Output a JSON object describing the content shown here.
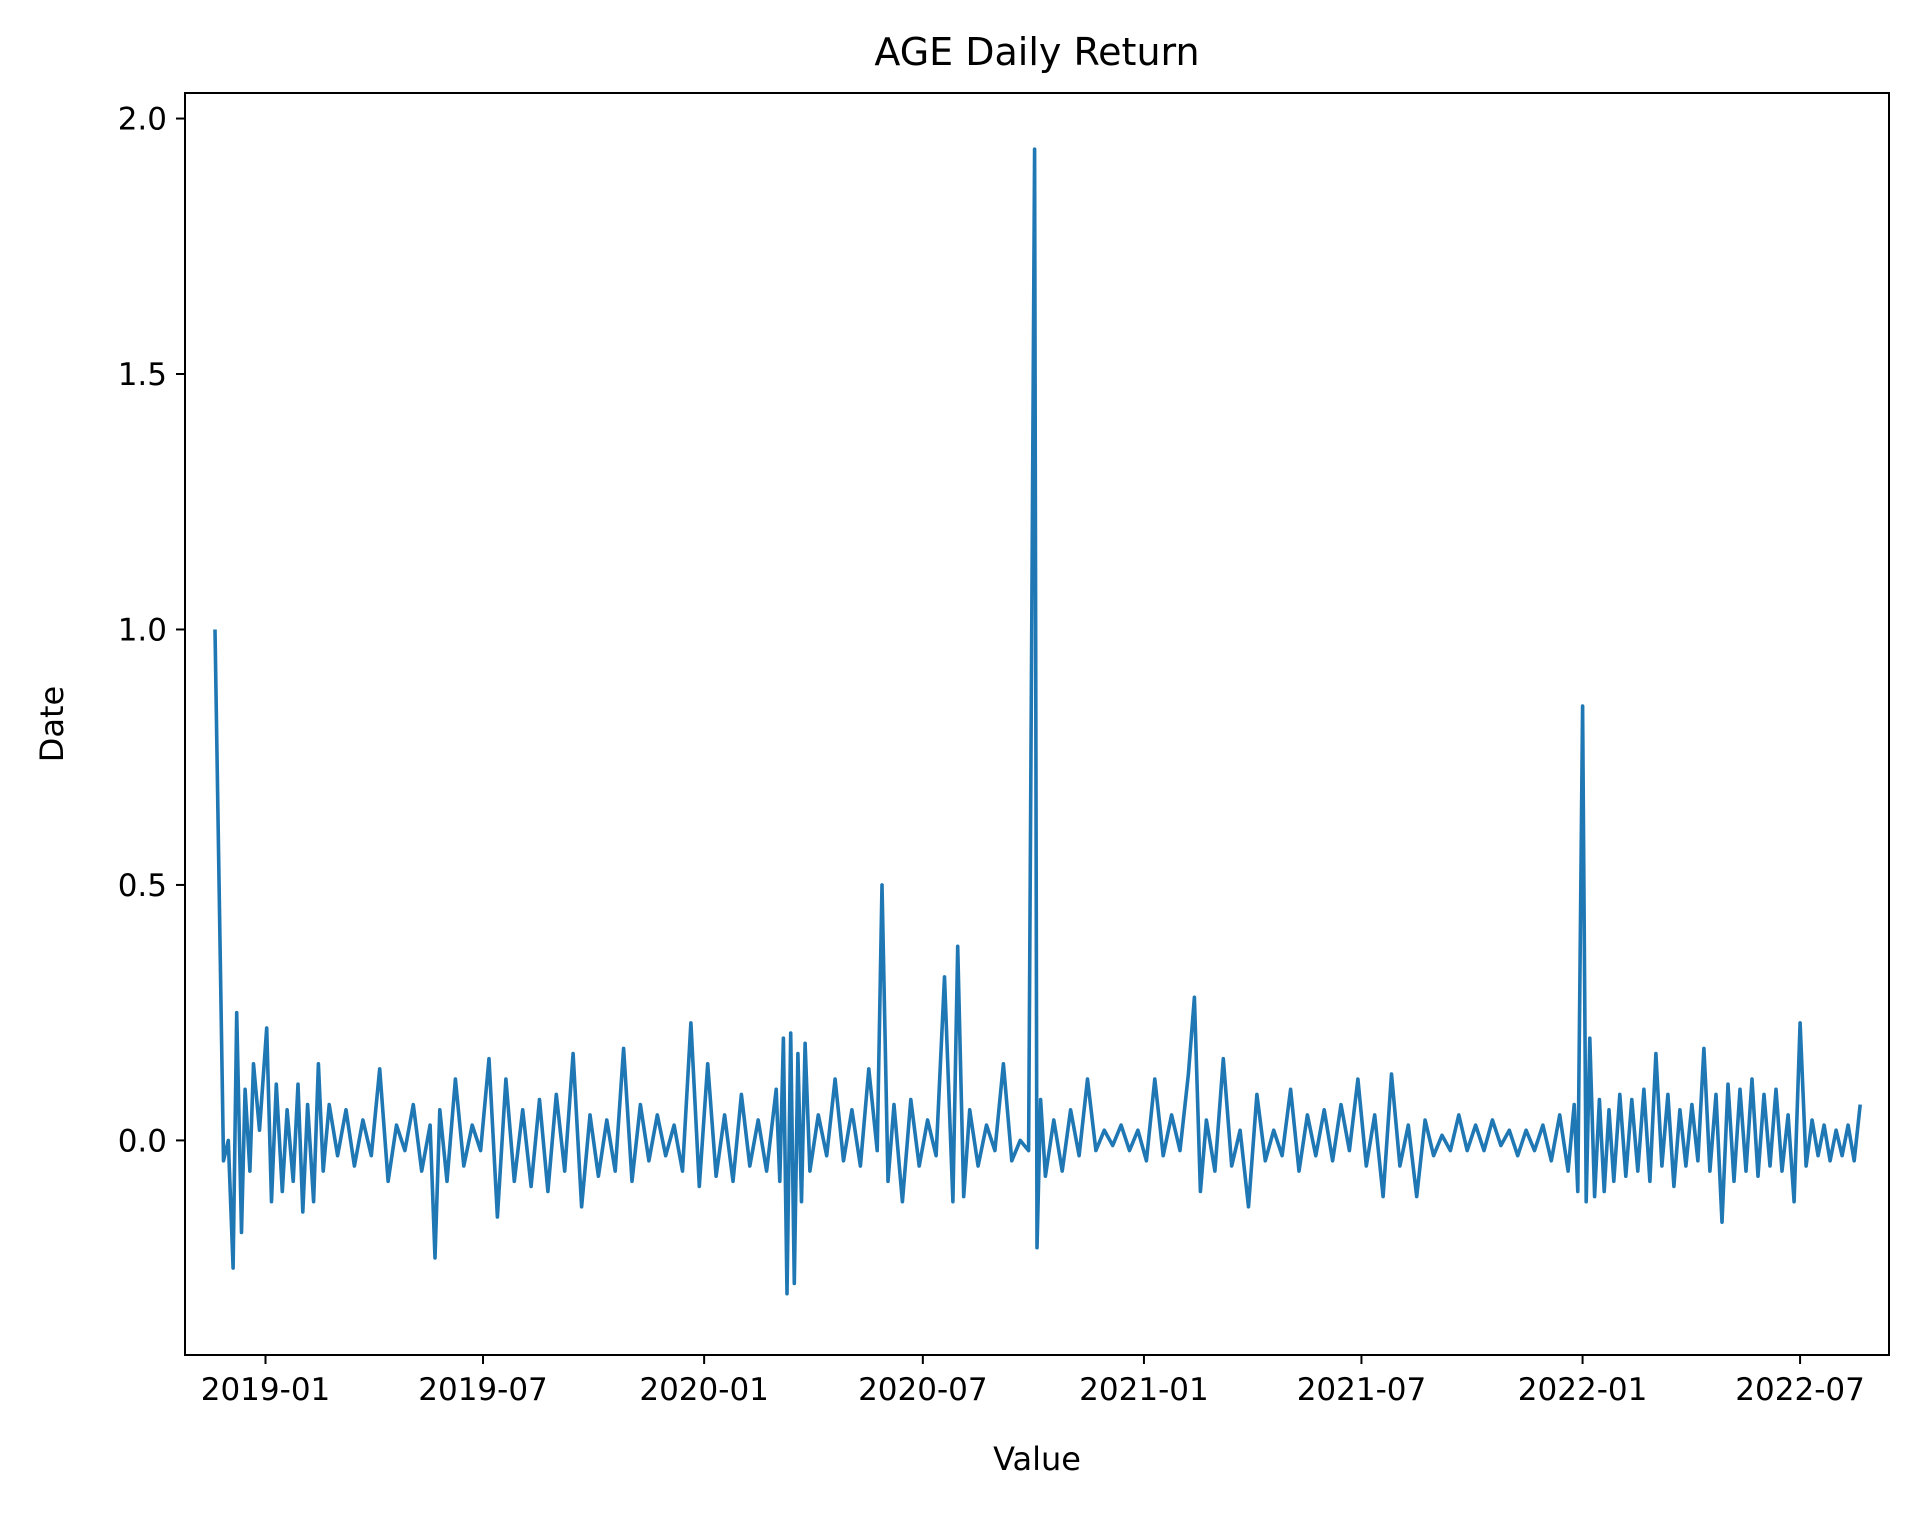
{
  "chart_data": {
    "type": "line",
    "title": "AGE Daily Return",
    "xlabel": "Value",
    "ylabel": "Date",
    "xlim": [
      "2018-10-26",
      "2022-09-13"
    ],
    "ylim": [
      -0.42,
      2.05
    ],
    "x_ticks": [
      "2019-01",
      "2019-07",
      "2020-01",
      "2020-07",
      "2021-01",
      "2021-07",
      "2022-01",
      "2022-07"
    ],
    "y_ticks": [
      "0.0",
      "0.5",
      "1.0",
      "1.5",
      "2.0"
    ],
    "grid": false,
    "color": "#1f77b4",
    "series": [
      {
        "x": [
          "2018-11-20",
          "2018-11-27",
          "2018-12-01",
          "2018-12-05",
          "2018-12-08",
          "2018-12-12",
          "2018-12-15",
          "2018-12-19",
          "2018-12-22",
          "2018-12-27",
          "2019-01-02",
          "2019-01-06",
          "2019-01-10",
          "2019-01-15",
          "2019-01-19",
          "2019-01-24",
          "2019-01-28",
          "2019-02-01",
          "2019-02-05",
          "2019-02-10",
          "2019-02-14",
          "2019-02-18",
          "2019-02-23",
          "2019-03-02",
          "2019-03-09",
          "2019-03-16",
          "2019-03-23",
          "2019-03-30",
          "2019-04-06",
          "2019-04-13",
          "2019-04-20",
          "2019-04-27",
          "2019-05-04",
          "2019-05-11",
          "2019-05-18",
          "2019-05-22",
          "2019-05-26",
          "2019-06-01",
          "2019-06-08",
          "2019-06-15",
          "2019-06-22",
          "2019-06-29",
          "2019-07-06",
          "2019-07-13",
          "2019-07-20",
          "2019-07-27",
          "2019-08-03",
          "2019-08-10",
          "2019-08-17",
          "2019-08-24",
          "2019-08-31",
          "2019-09-07",
          "2019-09-14",
          "2019-09-21",
          "2019-09-28",
          "2019-10-05",
          "2019-10-12",
          "2019-10-19",
          "2019-10-26",
          "2019-11-02",
          "2019-11-09",
          "2019-11-16",
          "2019-11-23",
          "2019-11-30",
          "2019-12-07",
          "2019-12-14",
          "2019-12-21",
          "2019-12-28",
          "2020-01-04",
          "2020-01-11",
          "2020-01-18",
          "2020-01-25",
          "2020-02-01",
          "2020-02-08",
          "2020-02-15",
          "2020-02-22",
          "2020-03-01",
          "2020-03-04",
          "2020-03-07",
          "2020-03-10",
          "2020-03-13",
          "2020-03-16",
          "2020-03-19",
          "2020-03-22",
          "2020-03-25",
          "2020-03-29",
          "2020-04-05",
          "2020-04-12",
          "2020-04-19",
          "2020-04-26",
          "2020-05-03",
          "2020-05-10",
          "2020-05-17",
          "2020-05-24",
          "2020-05-28",
          "2020-06-02",
          "2020-06-07",
          "2020-06-14",
          "2020-06-21",
          "2020-06-28",
          "2020-07-05",
          "2020-07-12",
          "2020-07-19",
          "2020-07-26",
          "2020-07-30",
          "2020-08-04",
          "2020-08-09",
          "2020-08-16",
          "2020-08-23",
          "2020-08-30",
          "2020-09-06",
          "2020-09-13",
          "2020-09-20",
          "2020-09-27",
          "2020-10-02",
          "2020-10-04",
          "2020-10-07",
          "2020-10-11",
          "2020-10-18",
          "2020-10-25",
          "2020-11-01",
          "2020-11-08",
          "2020-11-15",
          "2020-11-22",
          "2020-11-29",
          "2020-12-06",
          "2020-12-13",
          "2020-12-20",
          "2020-12-27",
          "2021-01-03",
          "2021-01-10",
          "2021-01-17",
          "2021-01-24",
          "2021-01-31",
          "2021-02-07",
          "2021-02-12",
          "2021-02-17",
          "2021-02-22",
          "2021-03-01",
          "2021-03-08",
          "2021-03-15",
          "2021-03-22",
          "2021-03-29",
          "2021-04-05",
          "2021-04-12",
          "2021-04-19",
          "2021-04-26",
          "2021-05-03",
          "2021-05-10",
          "2021-05-17",
          "2021-05-24",
          "2021-05-31",
          "2021-06-07",
          "2021-06-14",
          "2021-06-21",
          "2021-06-28",
          "2021-07-05",
          "2021-07-12",
          "2021-07-19",
          "2021-07-26",
          "2021-08-02",
          "2021-08-09",
          "2021-08-16",
          "2021-08-23",
          "2021-08-30",
          "2021-09-06",
          "2021-09-13",
          "2021-09-20",
          "2021-09-27",
          "2021-10-04",
          "2021-10-11",
          "2021-10-18",
          "2021-10-25",
          "2021-11-01",
          "2021-11-08",
          "2021-11-15",
          "2021-11-22",
          "2021-11-29",
          "2021-12-06",
          "2021-12-13",
          "2021-12-20",
          "2021-12-25",
          "2021-12-28",
          "2022-01-01",
          "2022-01-04",
          "2022-01-07",
          "2022-01-11",
          "2022-01-15",
          "2022-01-19",
          "2022-01-23",
          "2022-01-27",
          "2022-02-01",
          "2022-02-06",
          "2022-02-11",
          "2022-02-16",
          "2022-02-21",
          "2022-02-26",
          "2022-03-03",
          "2022-03-08",
          "2022-03-13",
          "2022-03-18",
          "2022-03-23",
          "2022-03-28",
          "2022-04-02",
          "2022-04-07",
          "2022-04-12",
          "2022-04-17",
          "2022-04-22",
          "2022-04-27",
          "2022-05-02",
          "2022-05-07",
          "2022-05-12",
          "2022-05-17",
          "2022-05-22",
          "2022-05-27",
          "2022-06-01",
          "2022-06-06",
          "2022-06-11",
          "2022-06-16",
          "2022-06-21",
          "2022-06-26",
          "2022-07-01",
          "2022-07-06",
          "2022-07-11",
          "2022-07-16",
          "2022-07-21",
          "2022-07-26",
          "2022-07-31",
          "2022-08-05",
          "2022-08-10",
          "2022-08-15",
          "2022-08-20"
        ],
        "y": [
          1.0,
          -0.04,
          0.0,
          -0.25,
          0.25,
          -0.18,
          0.1,
          -0.06,
          0.15,
          0.02,
          0.22,
          -0.12,
          0.11,
          -0.1,
          0.06,
          -0.08,
          0.11,
          -0.14,
          0.07,
          -0.12,
          0.15,
          -0.06,
          0.07,
          -0.03,
          0.06,
          -0.05,
          0.04,
          -0.03,
          0.14,
          -0.08,
          0.03,
          -0.02,
          0.07,
          -0.06,
          0.03,
          -0.23,
          0.06,
          -0.08,
          0.12,
          -0.05,
          0.03,
          -0.02,
          0.16,
          -0.15,
          0.12,
          -0.08,
          0.06,
          -0.09,
          0.08,
          -0.1,
          0.09,
          -0.06,
          0.17,
          -0.13,
          0.05,
          -0.07,
          0.04,
          -0.06,
          0.18,
          -0.08,
          0.07,
          -0.04,
          0.05,
          -0.03,
          0.03,
          -0.06,
          0.23,
          -0.09,
          0.15,
          -0.07,
          0.05,
          -0.08,
          0.09,
          -0.05,
          0.04,
          -0.06,
          0.1,
          -0.08,
          0.2,
          -0.3,
          0.21,
          -0.28,
          0.17,
          -0.12,
          0.19,
          -0.06,
          0.05,
          -0.03,
          0.12,
          -0.04,
          0.06,
          -0.05,
          0.14,
          -0.02,
          0.5,
          -0.08,
          0.07,
          -0.12,
          0.08,
          -0.05,
          0.04,
          -0.03,
          0.32,
          -0.12,
          0.38,
          -0.11,
          0.06,
          -0.05,
          0.03,
          -0.02,
          0.15,
          -0.04,
          0.0,
          -0.02,
          1.94,
          -0.21,
          0.08,
          -0.07,
          0.04,
          -0.06,
          0.06,
          -0.03,
          0.12,
          -0.02,
          0.02,
          -0.01,
          0.03,
          -0.02,
          0.02,
          -0.04,
          0.12,
          -0.03,
          0.05,
          -0.02,
          0.13,
          0.28,
          -0.1,
          0.04,
          -0.06,
          0.16,
          -0.05,
          0.02,
          -0.13,
          0.09,
          -0.04,
          0.02,
          -0.03,
          0.1,
          -0.06,
          0.05,
          -0.03,
          0.06,
          -0.04,
          0.07,
          -0.02,
          0.12,
          -0.05,
          0.05,
          -0.11,
          0.13,
          -0.05,
          0.03,
          -0.11,
          0.04,
          -0.03,
          0.01,
          -0.02,
          0.05,
          -0.02,
          0.03,
          -0.02,
          0.04,
          -0.01,
          0.02,
          -0.03,
          0.02,
          -0.02,
          0.03,
          -0.04,
          0.05,
          -0.06,
          0.07,
          -0.1,
          0.85,
          -0.12,
          0.2,
          -0.11,
          0.08,
          -0.1,
          0.06,
          -0.08,
          0.09,
          -0.07,
          0.08,
          -0.06,
          0.1,
          -0.08,
          0.17,
          -0.05,
          0.09,
          -0.09,
          0.06,
          -0.05,
          0.07,
          -0.04,
          0.18,
          -0.06,
          0.09,
          -0.16,
          0.11,
          -0.08,
          0.1,
          -0.06,
          0.12,
          -0.07,
          0.09,
          -0.05,
          0.1,
          -0.06,
          0.05,
          -0.12,
          0.23,
          -0.05,
          0.04,
          -0.03,
          0.03,
          -0.04,
          0.02,
          -0.03,
          0.03,
          -0.04,
          0.07
        ]
      }
    ]
  }
}
